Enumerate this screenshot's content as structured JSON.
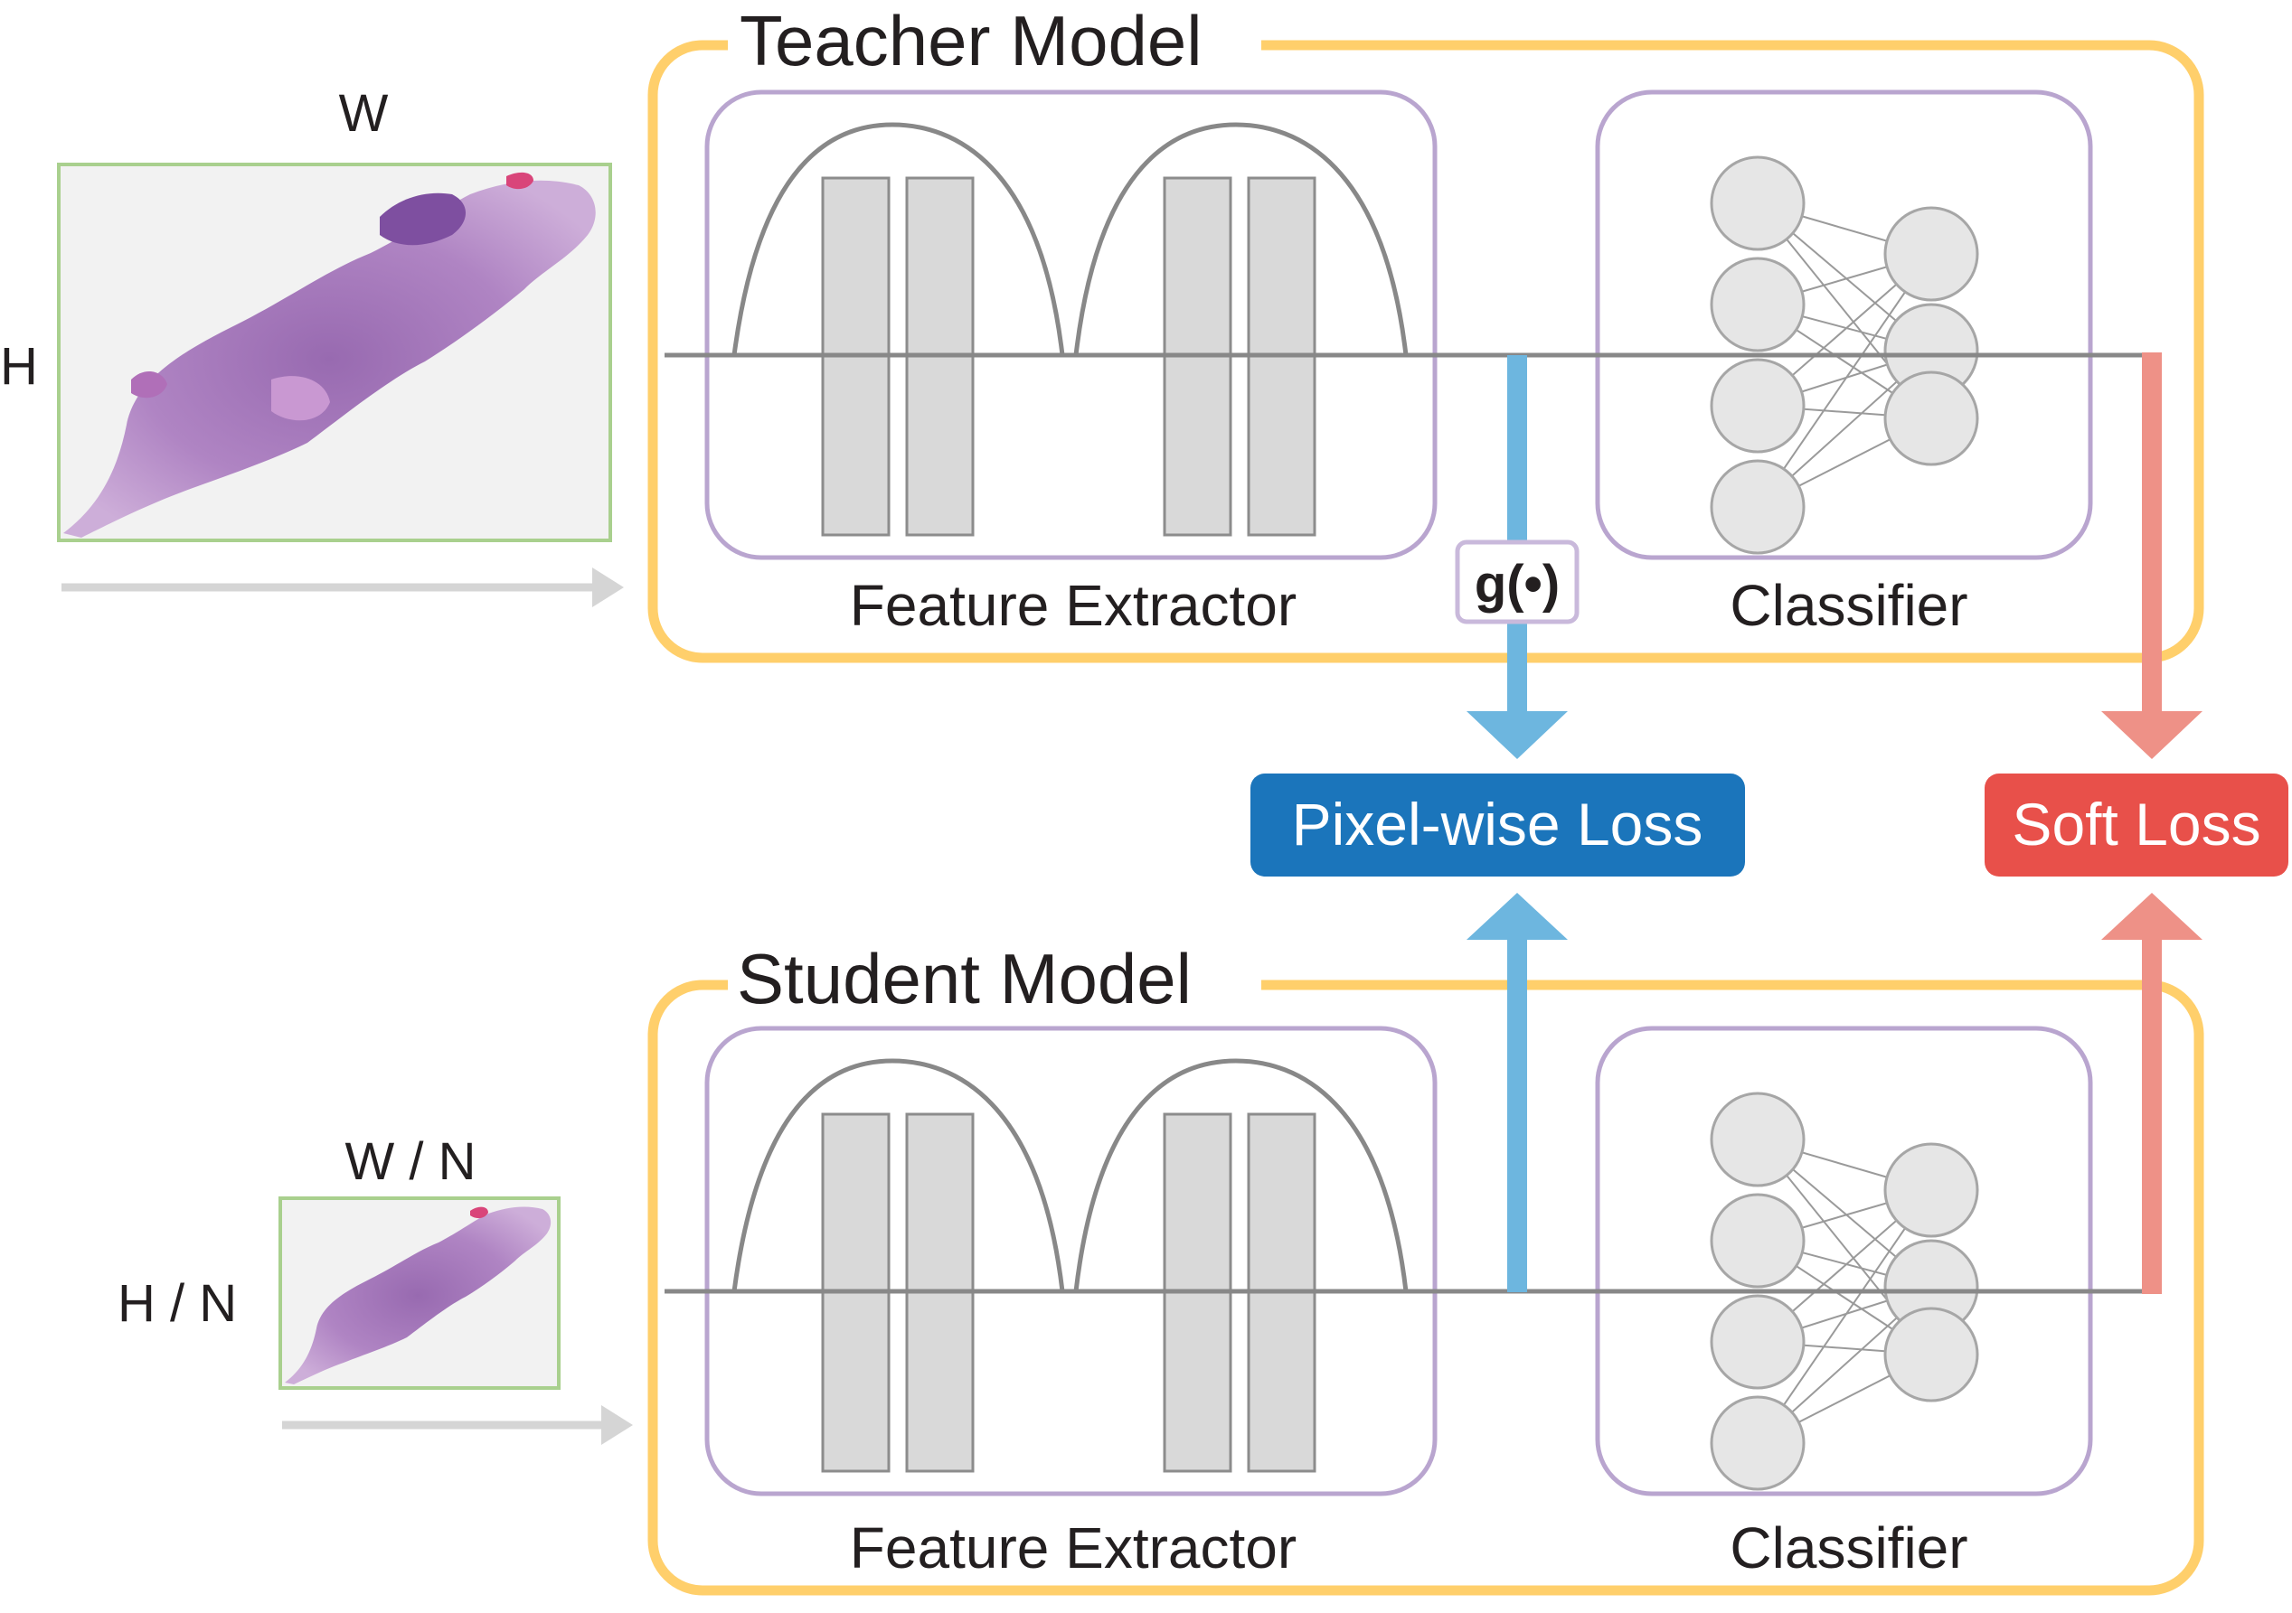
{
  "teacher": {
    "title": "Teacher Model",
    "input_width_label": "W",
    "input_height_label": "H",
    "feature_extractor_label": "Feature Extractor",
    "classifier_label": "Classifier"
  },
  "student": {
    "title": "Student Model",
    "input_width_label": "W / N",
    "input_height_label": "H / N",
    "feature_extractor_label": "Feature Extractor",
    "classifier_label": "Classifier"
  },
  "mapping_function_label": "g(•)",
  "losses": {
    "pixel_wise": "Pixel-wise Loss",
    "soft": "Soft Loss"
  },
  "colors": {
    "model_border": "#FFCF6B",
    "module_border": "#B9A5CF",
    "block_fill": "#D9D9D9",
    "line_gray": "#888888",
    "arrow_gray": "#D5D5D5",
    "image_border": "#A9D08E",
    "pixel_loss": "#1B75BB",
    "pixel_arrow": "#6DB6DF",
    "soft_loss": "#E8504A",
    "soft_arrow": "#EE9187"
  }
}
